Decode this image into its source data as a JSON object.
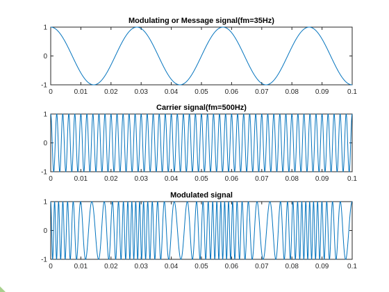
{
  "figure": {
    "background": "#ffffff",
    "line_color": "#0072BD"
  },
  "chart_data": [
    {
      "type": "line",
      "title": "Modulating or Message signal(fm=35Hz)",
      "signal": "message",
      "frequency_hz": 35,
      "xlim": [
        0,
        0.1
      ],
      "ylim": [
        -1,
        1
      ],
      "xticks": [
        0,
        0.01,
        0.02,
        0.03,
        0.04,
        0.05,
        0.06,
        0.07,
        0.08,
        0.09,
        0.1
      ],
      "xtick_labels": [
        "0",
        "0.01",
        "0.02",
        "0.03",
        "0.04",
        "0.05",
        "0.06",
        "0.07",
        "0.08",
        "0.09",
        "0.1"
      ],
      "yticks": [
        -1,
        0,
        1
      ],
      "ytick_labels": [
        "-1",
        "0",
        "1"
      ],
      "x": [
        0,
        0.0143,
        0.0286,
        0.0429,
        0.0571,
        0.0714,
        0.0857,
        0.1
      ],
      "y": [
        1,
        -1,
        1,
        -1,
        1,
        -1,
        1,
        -1
      ],
      "xlabel": "",
      "ylabel": "",
      "grid": false
    },
    {
      "type": "line",
      "title": "Carrier signal(fm=500Hz)",
      "signal": "carrier",
      "frequency_hz": 500,
      "xlim": [
        0,
        0.1
      ],
      "ylim": [
        -1,
        1
      ],
      "xticks": [
        0,
        0.01,
        0.02,
        0.03,
        0.04,
        0.05,
        0.06,
        0.07,
        0.08,
        0.09,
        0.1
      ],
      "xtick_labels": [
        "0",
        "0.01",
        "0.02",
        "0.03",
        "0.04",
        "0.05",
        "0.06",
        "0.07",
        "0.08",
        "0.09",
        "0.1"
      ],
      "yticks": [
        -1,
        0,
        1
      ],
      "ytick_labels": [
        "-1",
        "0",
        "1"
      ],
      "x": [
        0,
        0.001,
        0.002,
        0.003,
        0.004,
        0.005
      ],
      "y": [
        1,
        -1,
        1,
        -1,
        1,
        -1
      ],
      "xlabel": "",
      "ylabel": "",
      "grid": false
    },
    {
      "type": "line",
      "title": "Modulated signal",
      "signal": "modulated",
      "carrier_frequency_hz": 500,
      "message_frequency_hz": 35,
      "xlim": [
        0,
        0.1
      ],
      "ylim": [
        -1,
        1
      ],
      "xticks": [
        0,
        0.01,
        0.02,
        0.03,
        0.04,
        0.05,
        0.06,
        0.07,
        0.08,
        0.09,
        0.1
      ],
      "xtick_labels": [
        "0",
        "0.01",
        "0.02",
        "0.03",
        "0.04",
        "0.05",
        "0.06",
        "0.07",
        "0.08",
        "0.09",
        "0.1"
      ],
      "yticks": [
        -1,
        0,
        1
      ],
      "ytick_labels": [
        "-1",
        "0",
        "1"
      ],
      "x": [
        0,
        0.0143,
        0.0286,
        0.0429,
        0.0571,
        0.0714,
        0.0857,
        0.1
      ],
      "y": [
        1,
        -1,
        1,
        -1,
        1,
        -1,
        1,
        -1
      ],
      "xlabel": "",
      "ylabel": "",
      "grid": false
    }
  ]
}
